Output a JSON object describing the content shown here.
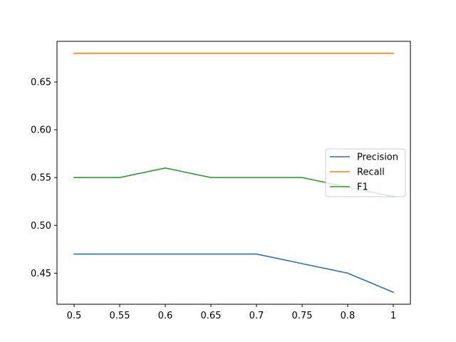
{
  "chart_data": {
    "type": "line",
    "x": [
      0.5,
      0.55,
      0.6,
      0.65,
      0.7,
      0.75,
      0.8,
      1
    ],
    "x_tick_labels": [
      "0.5",
      "0.55",
      "0.6",
      "0.65",
      "0.7",
      "0.75",
      "0.8",
      "1"
    ],
    "y_ticks": [
      0.45,
      0.5,
      0.55,
      0.6,
      0.65
    ],
    "y_tick_labels": [
      "0.45",
      "0.50",
      "0.55",
      "0.60",
      "0.65"
    ],
    "ylim": [
      0.4175,
      0.6925
    ],
    "x_axis": "categorical-evenly-spaced",
    "grid": false,
    "legend_position": "center-right",
    "title": "",
    "xlabel": "",
    "ylabel": "",
    "series": [
      {
        "name": "Precision",
        "color": "#1f77b4",
        "values": [
          0.47,
          0.47,
          0.47,
          0.47,
          0.47,
          0.46,
          0.45,
          0.43
        ]
      },
      {
        "name": "Recall",
        "color": "#ff7f0e",
        "values": [
          0.68,
          0.68,
          0.68,
          0.68,
          0.68,
          0.68,
          0.68,
          0.68
        ]
      },
      {
        "name": "F1",
        "color": "#2ca02c",
        "values": [
          0.55,
          0.55,
          0.56,
          0.55,
          0.55,
          0.55,
          0.54,
          0.53
        ]
      }
    ]
  }
}
